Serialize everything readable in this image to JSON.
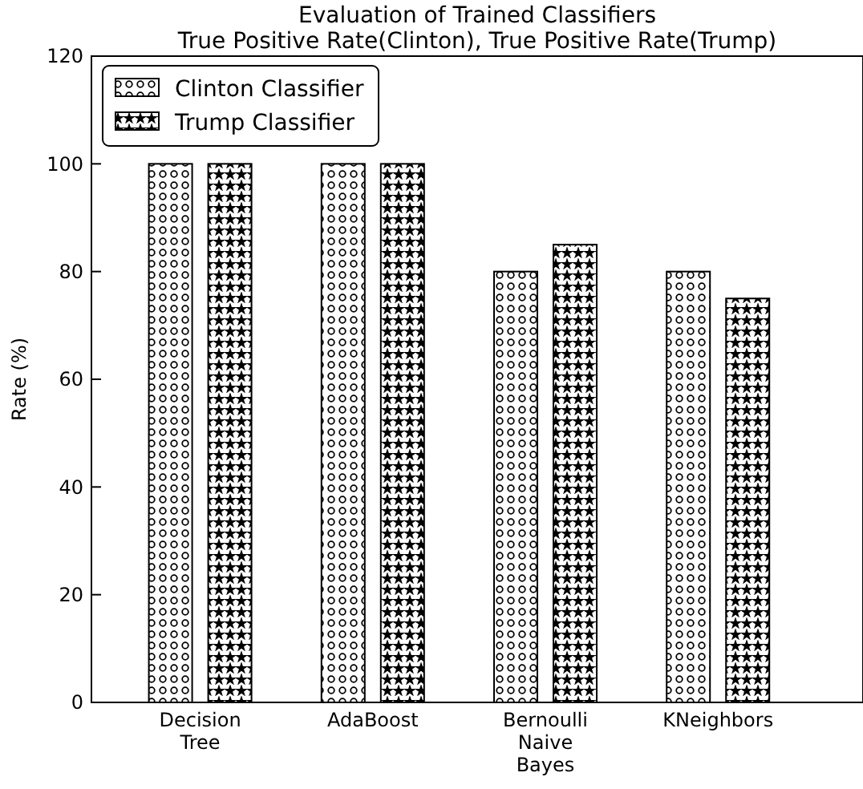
{
  "chart_data": {
    "type": "bar",
    "title": "Evaluation of Trained Classifiers",
    "subtitle": "True Positive Rate(Clinton), True Positive Rate(Trump)",
    "ylabel": "Rate (%)",
    "categories": [
      "Decision Tree",
      "AdaBoost",
      "Bernoulli Naive Bayes",
      "KNeighbors"
    ],
    "series": [
      {
        "name": "Clinton Classifier",
        "color": "#ffffff",
        "values": [
          100,
          100,
          80,
          80
        ]
      },
      {
        "name": "Trump Classifier",
        "color": "#ffffff",
        "values": [
          100,
          100,
          85,
          75
        ]
      }
    ],
    "ylim": [
      0,
      120
    ],
    "yticks": [
      0,
      20,
      40,
      60,
      80,
      100,
      120
    ],
    "grid": false,
    "legend": "top left"
  }
}
